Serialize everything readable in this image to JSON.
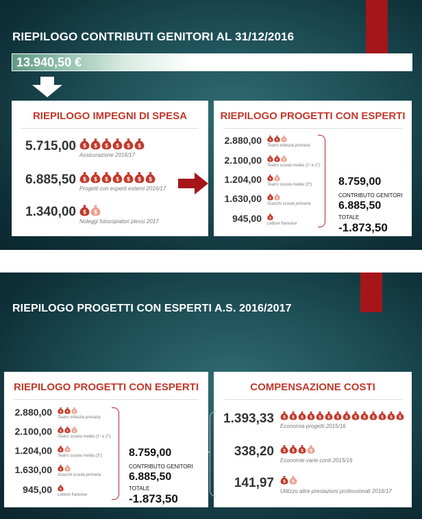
{
  "slide1": {
    "title": "RIEPILOGO CONTRIBUTI GENITORI AL 31/12/2016",
    "total": "13.940,50 €",
    "impegni": {
      "title": "RIEPILOGO IMPEGNI DI SPESA",
      "items": [
        {
          "value": "5.715,00",
          "label": "Assicurazione 2016/17",
          "bags": 6
        },
        {
          "value": "6.885,50",
          "label": "Progetti con esperti esterni 2016/17",
          "bags": 7
        },
        {
          "value": "1.340,00",
          "label": "Noleggi fotocopiatori plessi 2017",
          "bags": 2
        }
      ]
    },
    "progetti": {
      "title": "RIEPILOGO PROGETTI CON ESPERTI",
      "items": [
        {
          "value": "2.880,00",
          "label": "Teatro infanzia primaria",
          "bags": 3
        },
        {
          "value": "2.100,00",
          "label": "Teatro scuola media (1° e 2°)",
          "bags": 3
        },
        {
          "value": "1.204,00",
          "label": "Teatro scuola media (3°)",
          "bags": 2
        },
        {
          "value": "1.630,00",
          "label": "Scacchi scuola primaria",
          "bags": 2
        },
        {
          "value": "945,00",
          "label": "Lettore francese",
          "bags": 1
        }
      ],
      "sum": "8.759,00",
      "contributo_label": "CONTRIBUTO GENITORI",
      "contributo": "6.885,50",
      "totale_label": "TOTALE",
      "totale": "-1.873,50"
    }
  },
  "slide2": {
    "title": "RIEPILOGO PROGETTI CON ESPERTI A.S. 2016/2017",
    "progetti": {
      "title": "RIEPILOGO PROGETTI CON ESPERTI",
      "items": [
        {
          "value": "2.880,00",
          "label": "Teatro infanzia primaria",
          "bags": 3
        },
        {
          "value": "2.100,00",
          "label": "Teatro scuola media (1° e 2°)",
          "bags": 3
        },
        {
          "value": "1.204,00",
          "label": "Teatro scuola media (3°)",
          "bags": 2
        },
        {
          "value": "1.630,00",
          "label": "Scacchi scuola primaria",
          "bags": 2
        },
        {
          "value": "945,00",
          "label": "Lettore francese",
          "bags": 1
        }
      ],
      "sum": "8.759,00",
      "contributo_label": "CONTRIBUTO GENITORI",
      "contributo": "6.885,50",
      "totale_label": "TOTALE",
      "totale": "-1.873,50"
    },
    "compensazione": {
      "title": "COMPENSAZIONE COSTI",
      "items": [
        {
          "value": "1.393,33",
          "label": "Economia progetti 2015/16",
          "bags": 14
        },
        {
          "value": "338,20",
          "label": "Economie varie conti 2015/16",
          "bags": 4
        },
        {
          "value": "141,97",
          "label": "Utilizzo altre prestazioni professionali 2016/17",
          "bags": 2
        }
      ]
    }
  },
  "colors": {
    "accent_red": "#c0392b",
    "tab_red": "#a5161b",
    "bag_dark": "#c0392b",
    "bag_light": "#e8a28f"
  },
  "icons": {
    "bag": "money-bag-icon",
    "down_arrow": "down-arrow-icon",
    "right_arrow": "right-arrow-icon"
  }
}
